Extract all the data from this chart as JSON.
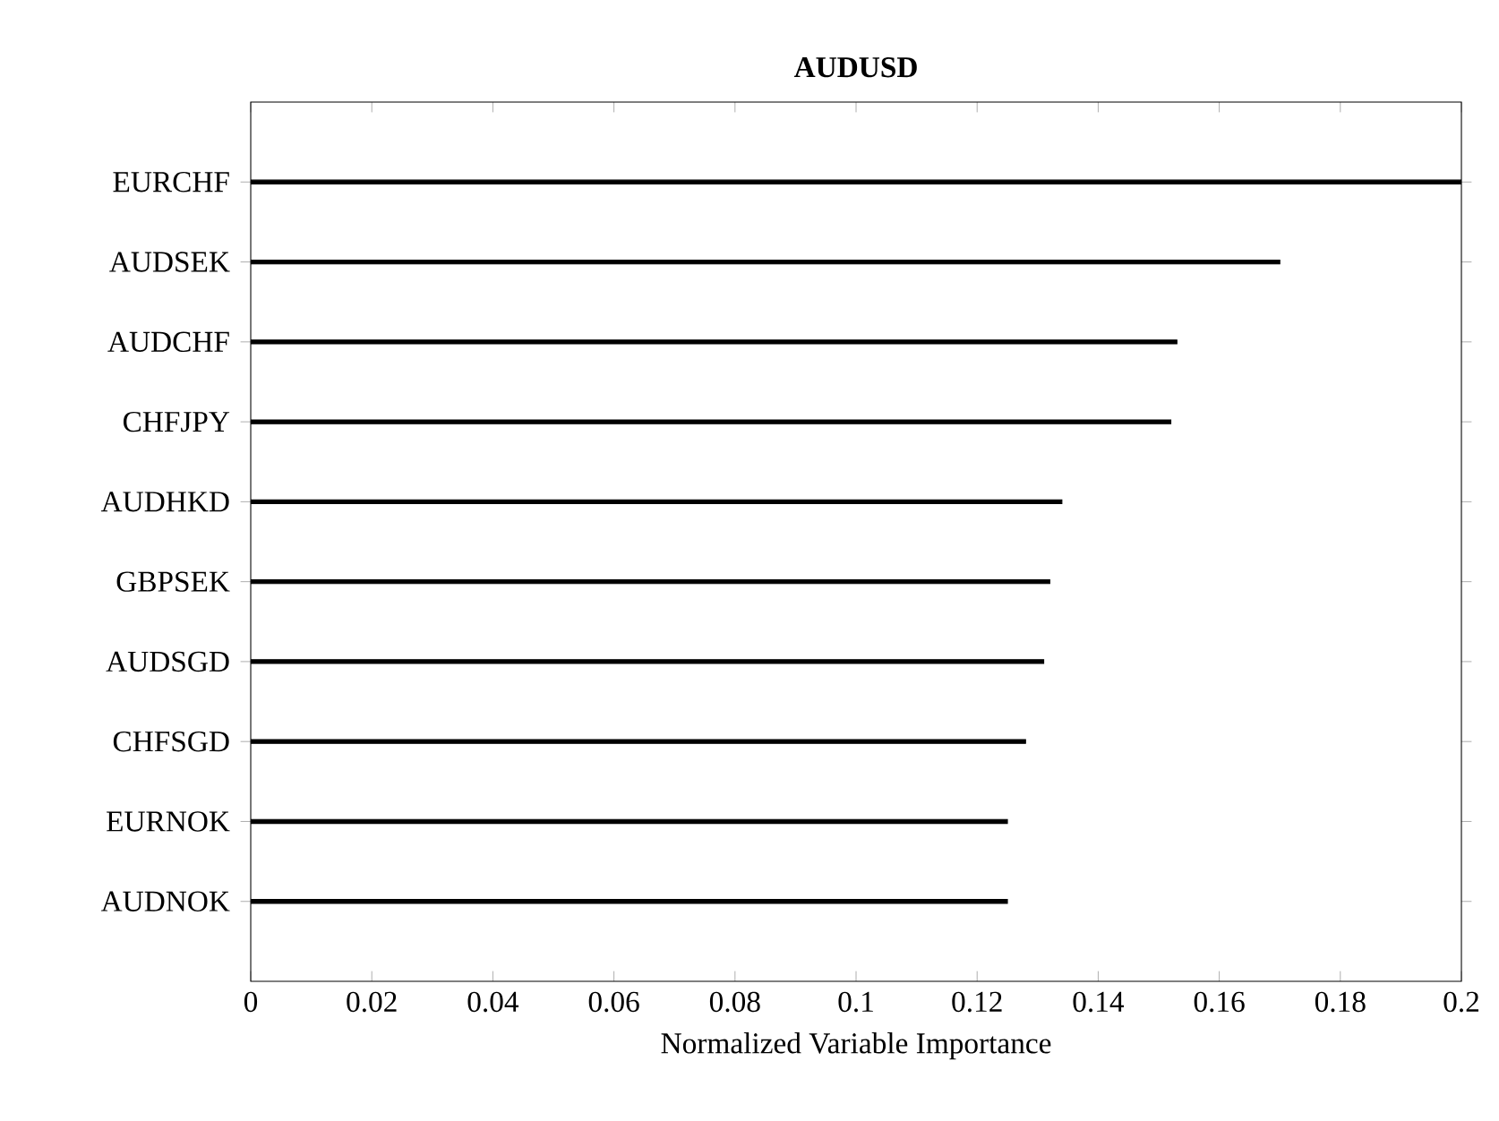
{
  "chart_data": {
    "type": "bar",
    "orientation": "horizontal",
    "title": "**AUDUSD**",
    "xlabel": "Normalized Variable Importance",
    "categories": [
      "EURCHF",
      "AUDSEK",
      "AUDCHF",
      "CHFJPY",
      "AUDHKD",
      "GBPSEK",
      "AUDSGD",
      "CHFSGD",
      "EURNOK",
      "AUDNOK"
    ],
    "values": [
      0.2,
      0.17,
      0.153,
      0.152,
      0.134,
      0.132,
      0.131,
      0.128,
      0.125,
      0.125
    ],
    "color": "#000000",
    "xlim": [
      0,
      0.2
    ],
    "xticks": [
      0,
      0.02,
      0.04,
      0.06,
      0.08,
      0.1,
      0.12,
      0.14,
      0.16,
      0.18,
      0.2
    ]
  }
}
